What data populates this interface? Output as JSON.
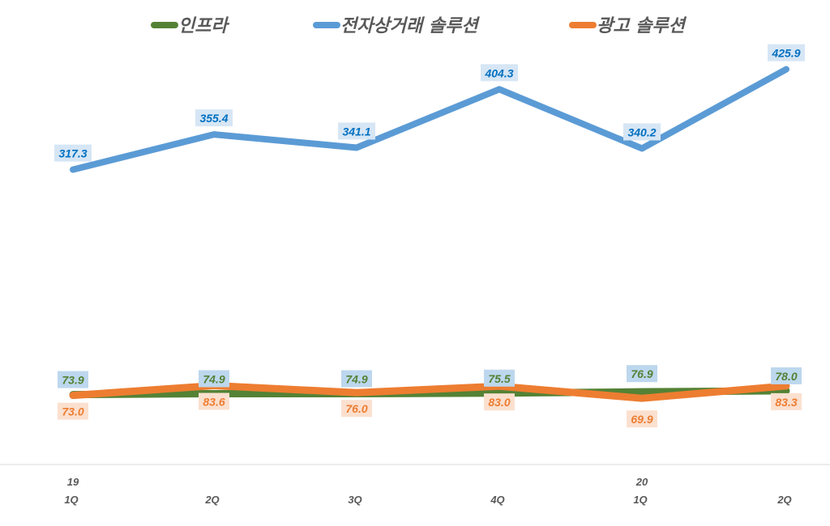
{
  "chart_data": {
    "type": "line",
    "title": "",
    "xlabel": "",
    "ylabel": "",
    "categories": [
      [
        "19",
        "1Q"
      ],
      [
        "",
        "2Q"
      ],
      [
        "",
        "3Q"
      ],
      [
        "",
        "4Q"
      ],
      [
        "20",
        "1Q"
      ],
      [
        "",
        "2Q"
      ]
    ],
    "ylim": [
      0,
      440
    ],
    "grid": false,
    "legend_position": "top",
    "series": [
      {
        "name": "인프라",
        "color": "#548235",
        "label_bg": "#bdd7ee",
        "label_color": "#548235",
        "label_pos": "above",
        "values": [
          73.9,
          74.9,
          74.9,
          75.5,
          76.9,
          78.0
        ]
      },
      {
        "name": "전자상거래 솔루션",
        "color": "#5b9bd5",
        "label_bg": "#d6e6f5",
        "label_color": "#0070c0",
        "label_pos": "above",
        "values": [
          317.3,
          355.4,
          341.1,
          404.3,
          340.2,
          425.9
        ]
      },
      {
        "name": "광고 솔루션",
        "color": "#ed7d31",
        "label_bg": "#fbe0cf",
        "label_color": "#ed7d31",
        "label_pos": "below",
        "values": [
          73.0,
          83.6,
          76.0,
          83.0,
          69.9,
          83.3
        ]
      }
    ]
  }
}
